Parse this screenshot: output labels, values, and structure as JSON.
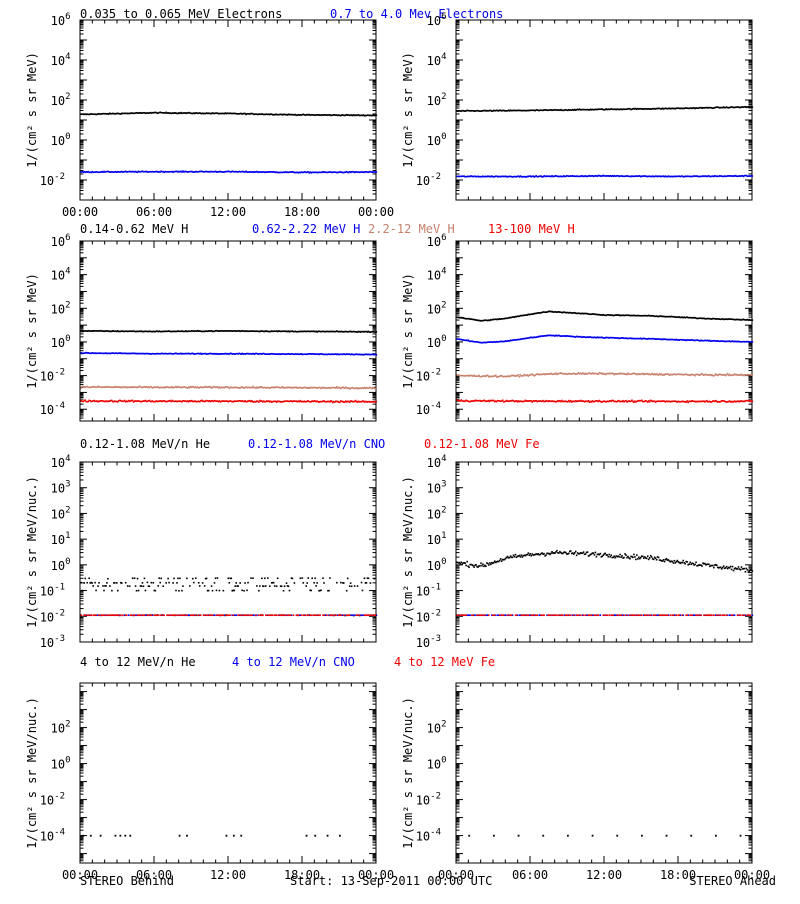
{
  "colors": {
    "black": "#000000",
    "blue": "#0000ee",
    "tan": "#c8826e",
    "red": "#ee0000"
  },
  "rows": [
    {
      "legend": [
        {
          "text": "0.035 to 0.065 MeV Electrons",
          "color": "#000000"
        },
        {
          "text": "0.7 to 4.0 Mev Electrons",
          "color": "#0000ee"
        }
      ],
      "ylabel": "1/(cm² s sr MeV)"
    },
    {
      "legend": [
        {
          "text": "0.14-0.62 MeV H",
          "color": "#000000"
        },
        {
          "text": "0.62-2.22 MeV H",
          "color": "#0000ee"
        },
        {
          "text": "2.2-12 MeV H",
          "color": "#c8826e"
        },
        {
          "text": "13-100 MeV H",
          "color": "#ee0000"
        }
      ],
      "ylabel": "1/(cm² s sr MeV)"
    },
    {
      "legend": [
        {
          "text": "0.12-1.08 MeV/n He",
          "color": "#000000"
        },
        {
          "text": "0.12-1.08 MeV/n CNO",
          "color": "#0000ee"
        },
        {
          "text": "0.12-1.08 MeV Fe",
          "color": "#ee0000"
        }
      ],
      "ylabel": "1/(cm² s sr MeV/nuc.)"
    },
    {
      "legend": [
        {
          "text": "4 to 12 MeV/n He",
          "color": "#000000"
        },
        {
          "text": "4 to 12 MeV/n CNO",
          "color": "#0000ee"
        },
        {
          "text": "4 to 12 MeV Fe",
          "color": "#ee0000"
        }
      ],
      "ylabel": "1/(cm² s sr MeV/nuc.)"
    }
  ],
  "footer": {
    "left": "STEREO Behind",
    "center": "Start: 13-Sep-2011 00:00 UTC",
    "right": "STEREO Ahead"
  },
  "chart_data": [
    {
      "type": "scatter",
      "row": 0,
      "col": 0,
      "scale": "log",
      "xlabel": "",
      "ylabel": "1/(cm² s sr MeV)",
      "xlim": [
        0,
        24
      ],
      "ylim": [
        0.001,
        1000000
      ],
      "xticks": [
        "00:00",
        "06:00",
        "12:00",
        "18:00",
        "00:00"
      ],
      "yticks": [
        {
          "mant": "10",
          "exp": "-2"
        },
        {
          "mant": "10",
          "exp": "0"
        },
        {
          "mant": "10",
          "exp": "2"
        },
        {
          "mant": "10",
          "exp": "4"
        },
        {
          "mant": "10",
          "exp": "6"
        }
      ],
      "series": [
        {
          "name": "0.035 to 0.065 MeV Electrons",
          "color": "#000000",
          "x": [
            0,
            6,
            12,
            18,
            24
          ],
          "y": [
            19,
            23,
            21,
            18,
            17
          ]
        },
        {
          "name": "0.7 to 4.0 Mev Electrons",
          "color": "#0000ee",
          "x": [
            0,
            6,
            12,
            18,
            24
          ],
          "y": [
            0.025,
            0.026,
            0.026,
            0.024,
            0.025
          ]
        }
      ]
    },
    {
      "type": "scatter",
      "row": 0,
      "col": 1,
      "scale": "log",
      "xlabel": "",
      "ylabel": "1/(cm² s sr MeV)",
      "xlim": [
        0,
        24
      ],
      "ylim": [
        0.001,
        1000000
      ],
      "xticks": [],
      "yticks": [
        {
          "mant": "10",
          "exp": "-2"
        },
        {
          "mant": "10",
          "exp": "0"
        },
        {
          "mant": "10",
          "exp": "2"
        },
        {
          "mant": "10",
          "exp": "4"
        },
        {
          "mant": "10",
          "exp": "6"
        }
      ],
      "series": [
        {
          "name": "0.035 to 0.065 MeV Electrons",
          "color": "#000000",
          "x": [
            0,
            6,
            12,
            18,
            24
          ],
          "y": [
            28,
            30,
            34,
            38,
            45
          ]
        },
        {
          "name": "0.7 to 4.0 Mev Electrons",
          "color": "#0000ee",
          "x": [
            0,
            6,
            12,
            18,
            24
          ],
          "y": [
            0.015,
            0.015,
            0.016,
            0.015,
            0.016
          ]
        }
      ]
    },
    {
      "type": "scatter",
      "row": 1,
      "col": 0,
      "scale": "log",
      "xlabel": "",
      "ylabel": "1/(cm² s sr MeV)",
      "xlim": [
        0,
        24
      ],
      "ylim": [
        2e-05,
        1000000
      ],
      "xticks": [],
      "yticks": [
        {
          "mant": "10",
          "exp": "-4"
        },
        {
          "mant": "10",
          "exp": "-2"
        },
        {
          "mant": "10",
          "exp": "0"
        },
        {
          "mant": "10",
          "exp": "2"
        },
        {
          "mant": "10",
          "exp": "4"
        },
        {
          "mant": "10",
          "exp": "6"
        }
      ],
      "series": [
        {
          "name": "0.14-0.62 MeV H",
          "color": "#000000",
          "x": [
            0,
            6,
            12,
            18,
            24
          ],
          "y": [
            4.5,
            4.2,
            4.5,
            4.2,
            4.0
          ]
        },
        {
          "name": "0.62-2.22 MeV H",
          "color": "#0000ee",
          "x": [
            0,
            6,
            12,
            18,
            24
          ],
          "y": [
            0.22,
            0.2,
            0.2,
            0.19,
            0.18
          ]
        },
        {
          "name": "2.2-12 MeV H",
          "color": "#c8826e",
          "x": [
            0,
            6,
            12,
            18,
            24
          ],
          "y": [
            0.0021,
            0.002,
            0.002,
            0.0019,
            0.0018
          ]
        },
        {
          "name": "13-100 MeV H",
          "color": "#ee0000",
          "x": [
            0,
            6,
            12,
            18,
            24
          ],
          "y": [
            0.00031,
            0.0003,
            0.0003,
            0.00029,
            0.00028
          ]
        }
      ]
    },
    {
      "type": "scatter",
      "row": 1,
      "col": 1,
      "scale": "log",
      "xlabel": "",
      "ylabel": "1/(cm² s sr MeV)",
      "xlim": [
        0,
        24
      ],
      "ylim": [
        2e-05,
        1000000
      ],
      "xticks": [],
      "yticks": [
        {
          "mant": "10",
          "exp": "-4"
        },
        {
          "mant": "10",
          "exp": "-2"
        },
        {
          "mant": "10",
          "exp": "0"
        },
        {
          "mant": "10",
          "exp": "2"
        },
        {
          "mant": "10",
          "exp": "4"
        },
        {
          "mant": "10",
          "exp": "6"
        }
      ],
      "series": [
        {
          "name": "0.14-0.62 MeV H",
          "color": "#000000",
          "x": [
            0,
            2,
            4,
            6,
            7.5,
            10,
            12,
            16,
            20,
            24
          ],
          "y": [
            30,
            18,
            25,
            45,
            65,
            50,
            40,
            35,
            25,
            20
          ]
        },
        {
          "name": "0.62-2.22 MeV H",
          "color": "#0000ee",
          "x": [
            0,
            2,
            4,
            6,
            7.5,
            10,
            12,
            16,
            20,
            24
          ],
          "y": [
            1.5,
            0.9,
            1.1,
            1.8,
            2.5,
            2.0,
            1.8,
            1.5,
            1.2,
            1.0
          ]
        },
        {
          "name": "2.2-12 MeV H",
          "color": "#c8826e",
          "x": [
            0,
            4,
            8,
            12,
            16,
            20,
            24
          ],
          "y": [
            0.01,
            0.009,
            0.013,
            0.013,
            0.012,
            0.011,
            0.011
          ]
        },
        {
          "name": "13-100 MeV H",
          "color": "#ee0000",
          "x": [
            0,
            6,
            12,
            18,
            24
          ],
          "y": [
            0.00032,
            0.0003,
            0.0003,
            0.00029,
            0.0003
          ]
        }
      ]
    },
    {
      "type": "scatter",
      "row": 2,
      "col": 0,
      "scale": "log",
      "xlabel": "",
      "ylabel": "1/(cm² s sr MeV/nuc.)",
      "xlim": [
        0,
        24
      ],
      "ylim": [
        0.001,
        10000
      ],
      "xticks": [],
      "yticks": [
        {
          "mant": "10",
          "exp": "-3"
        },
        {
          "mant": "10",
          "exp": "-2"
        },
        {
          "mant": "10",
          "exp": "-1"
        },
        {
          "mant": "10",
          "exp": "0"
        },
        {
          "mant": "10",
          "exp": "1"
        },
        {
          "mant": "10",
          "exp": "2"
        },
        {
          "mant": "10",
          "exp": "3"
        },
        {
          "mant": "10",
          "exp": "4"
        }
      ],
      "series": [
        {
          "name": "0.12-1.08 MeV/n He",
          "color": "#000000",
          "x": [
            0,
            6,
            12,
            18,
            24
          ],
          "y": [
            0.2,
            0.15,
            0.15,
            0.16,
            0.15
          ]
        },
        {
          "name": "0.12-1.08 MeV/n CNO",
          "color": "#0000ee",
          "x": [
            0,
            6,
            12,
            18,
            24
          ],
          "y": [
            0.011,
            0.011,
            0.011,
            0.011,
            0.011
          ]
        },
        {
          "name": "0.12-1.08 MeV Fe",
          "color": "#ee0000",
          "x": [
            0,
            6,
            12,
            18,
            24
          ],
          "y": [
            0.011,
            0.011,
            0.011,
            0.011,
            0.011
          ]
        }
      ]
    },
    {
      "type": "scatter",
      "row": 2,
      "col": 1,
      "scale": "log",
      "xlabel": "",
      "ylabel": "1/(cm² s sr MeV/nuc.)",
      "xlim": [
        0,
        24
      ],
      "ylim": [
        0.001,
        10000
      ],
      "xticks": [],
      "yticks": [
        {
          "mant": "10",
          "exp": "-3"
        },
        {
          "mant": "10",
          "exp": "-2"
        },
        {
          "mant": "10",
          "exp": "-1"
        },
        {
          "mant": "10",
          "exp": "0"
        },
        {
          "mant": "10",
          "exp": "1"
        },
        {
          "mant": "10",
          "exp": "2"
        },
        {
          "mant": "10",
          "exp": "3"
        },
        {
          "mant": "10",
          "exp": "4"
        }
      ],
      "series": [
        {
          "name": "0.12-1.08 MeV/n He",
          "color": "#000000",
          "x": [
            0,
            2,
            4,
            6,
            8,
            12,
            16,
            20,
            24
          ],
          "y": [
            1.2,
            0.9,
            1.8,
            2.5,
            3.0,
            2.5,
            1.8,
            1.0,
            0.6
          ]
        },
        {
          "name": "0.12-1.08 MeV/n CNO",
          "color": "#0000ee",
          "x": [
            0,
            6,
            12,
            18,
            24
          ],
          "y": [
            0.011,
            0.011,
            0.011,
            0.011,
            0.011
          ]
        },
        {
          "name": "0.12-1.08 MeV Fe",
          "color": "#ee0000",
          "x": [
            0,
            6,
            12,
            18,
            24
          ],
          "y": [
            0.011,
            0.011,
            0.011,
            0.011,
            0.011
          ]
        }
      ]
    },
    {
      "type": "scatter",
      "row": 3,
      "col": 0,
      "scale": "log",
      "xlabel": "",
      "ylabel": "1/(cm² s sr MeV/nuc.)",
      "xlim": [
        0,
        24
      ],
      "ylim": [
        3e-06,
        30000
      ],
      "xticks": [
        "00:00",
        "06:00",
        "12:00",
        "18:00",
        "00:00"
      ],
      "yticks": [
        {
          "mant": "10",
          "exp": "-4"
        },
        {
          "mant": "10",
          "exp": "-2"
        },
        {
          "mant": "10",
          "exp": "0"
        },
        {
          "mant": "10",
          "exp": "2"
        }
      ],
      "series": [
        {
          "name": "4 to 12 MeV/n He",
          "color": "#000000",
          "x": [
            0.2,
            0.8,
            1.6,
            2.8,
            3.2,
            3.6,
            4.0,
            8.0,
            8.6,
            11.8,
            12.4,
            13.0,
            18.3,
            19.0,
            20.0,
            21.0
          ],
          "y": [
            0.0001,
            0.0001,
            0.0001,
            0.0001,
            0.0001,
            0.0001,
            0.0001,
            0.0001,
            0.0001,
            0.0001,
            0.0001,
            0.0001,
            0.0001,
            0.0001,
            0.0001,
            0.0001
          ]
        }
      ]
    },
    {
      "type": "scatter",
      "row": 3,
      "col": 1,
      "scale": "log",
      "xlabel": "",
      "ylabel": "1/(cm² s sr MeV/nuc.)",
      "xlim": [
        0,
        24
      ],
      "ylim": [
        3e-06,
        30000
      ],
      "xticks": [
        "00:00",
        "06:00",
        "12:00",
        "18:00",
        "00:00"
      ],
      "yticks": [
        {
          "mant": "10",
          "exp": "-4"
        },
        {
          "mant": "10",
          "exp": "-2"
        },
        {
          "mant": "10",
          "exp": "0"
        },
        {
          "mant": "10",
          "exp": "2"
        }
      ],
      "series": [
        {
          "name": "4 to 12 MeV/n He",
          "color": "#000000",
          "x": [
            1.0,
            3.0,
            5.0,
            7.0,
            9.0,
            11.0,
            13.0,
            15.0,
            17.0,
            19.0,
            21.0,
            23.0
          ],
          "y": [
            0.0001,
            0.0001,
            0.0001,
            0.0001,
            0.0001,
            0.0001,
            0.0001,
            0.0001,
            0.0001,
            0.0001,
            0.0001,
            0.0001
          ]
        }
      ]
    }
  ]
}
